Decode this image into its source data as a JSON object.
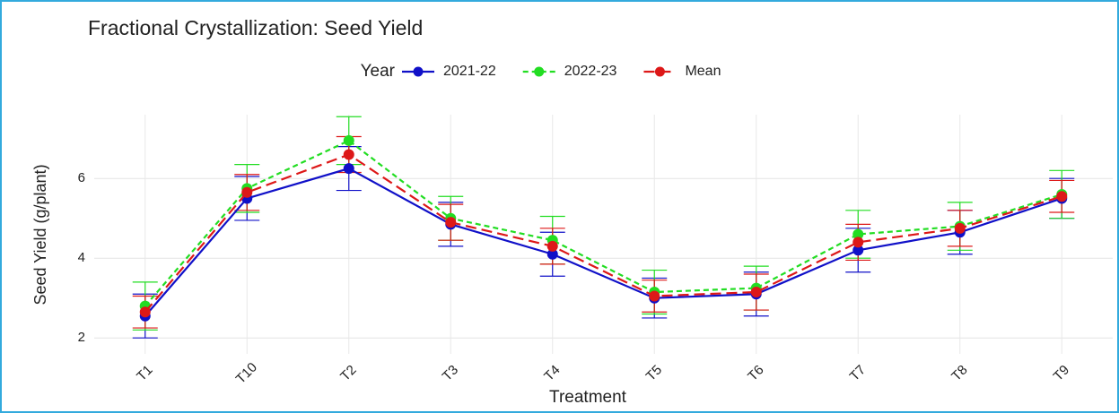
{
  "chart_data": {
    "type": "line",
    "title": "Fractional Crystallization: Seed Yield",
    "x_label": "Treatment",
    "y_label": "Seed Yield (g/plant)",
    "legend_title": "Year",
    "legend_position": "top",
    "categories": [
      "T1",
      "T10",
      "T2",
      "T3",
      "T4",
      "T5",
      "T6",
      "T7",
      "T8",
      "T9"
    ],
    "series": [
      {
        "name": "2021-22",
        "color": "#1010c8",
        "dash": "solid",
        "values": [
          2.55,
          5.5,
          6.25,
          4.85,
          4.1,
          3.0,
          3.1,
          4.2,
          4.65,
          5.5
        ],
        "errors": [
          0.55,
          0.55,
          0.55,
          0.55,
          0.55,
          0.5,
          0.55,
          0.55,
          0.55,
          0.5
        ]
      },
      {
        "name": "2022-23",
        "color": "#22dd22",
        "dash": "short",
        "values": [
          2.8,
          5.75,
          6.95,
          5.0,
          4.45,
          3.15,
          3.25,
          4.6,
          4.8,
          5.6
        ],
        "errors": [
          0.6,
          0.6,
          0.6,
          0.55,
          0.6,
          0.55,
          0.55,
          0.6,
          0.6,
          0.6
        ]
      },
      {
        "name": "Mean",
        "color": "#dd1818",
        "dash": "long",
        "values": [
          2.65,
          5.65,
          6.6,
          4.9,
          4.3,
          3.05,
          3.15,
          4.4,
          4.75,
          5.55
        ],
        "errors": [
          0.4,
          0.45,
          0.45,
          0.45,
          0.45,
          0.4,
          0.45,
          0.45,
          0.45,
          0.4
        ]
      }
    ],
    "ylim": [
      1.6,
      7.6
    ],
    "yticks": [
      2,
      4,
      6
    ],
    "grid": true
  }
}
